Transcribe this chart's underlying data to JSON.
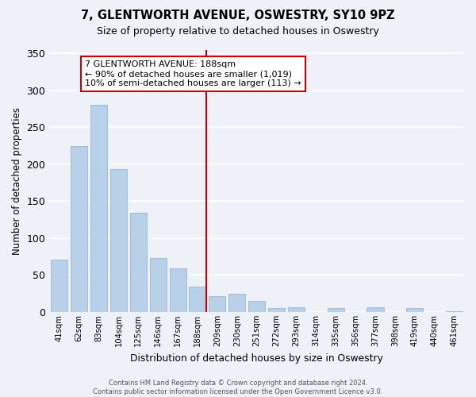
{
  "title": "7, GLENTWORTH AVENUE, OSWESTRY, SY10 9PZ",
  "subtitle": "Size of property relative to detached houses in Oswestry",
  "xlabel": "Distribution of detached houses by size in Oswestry",
  "ylabel": "Number of detached properties",
  "footer_line1": "Contains HM Land Registry data © Crown copyright and database right 2024.",
  "footer_line2": "Contains public sector information licensed under the Open Government Licence v3.0.",
  "bar_labels": [
    "41sqm",
    "62sqm",
    "83sqm",
    "104sqm",
    "125sqm",
    "146sqm",
    "167sqm",
    "188sqm",
    "209sqm",
    "230sqm",
    "251sqm",
    "272sqm",
    "293sqm",
    "314sqm",
    "335sqm",
    "356sqm",
    "377sqm",
    "398sqm",
    "419sqm",
    "440sqm",
    "461sqm"
  ],
  "bar_values": [
    71,
    224,
    280,
    193,
    134,
    73,
    59,
    34,
    22,
    25,
    15,
    5,
    6,
    0,
    5,
    0,
    6,
    0,
    5,
    0,
    1
  ],
  "bar_color": "#b8d0e8",
  "bar_edge_color": "#a0bcd8",
  "vline_index": 7,
  "vline_color": "#cc0000",
  "annotation_title": "7 GLENTWORTH AVENUE: 188sqm",
  "annotation_line1": "← 90% of detached houses are smaller (1,019)",
  "annotation_line2": "10% of semi-detached houses are larger (113) →",
  "annotation_box_color": "#ffffff",
  "annotation_box_edge": "#cc0000",
  "ylim": [
    0,
    355
  ],
  "yticks": [
    0,
    50,
    100,
    150,
    200,
    250,
    300,
    350
  ],
  "background_color": "#eef2f8"
}
